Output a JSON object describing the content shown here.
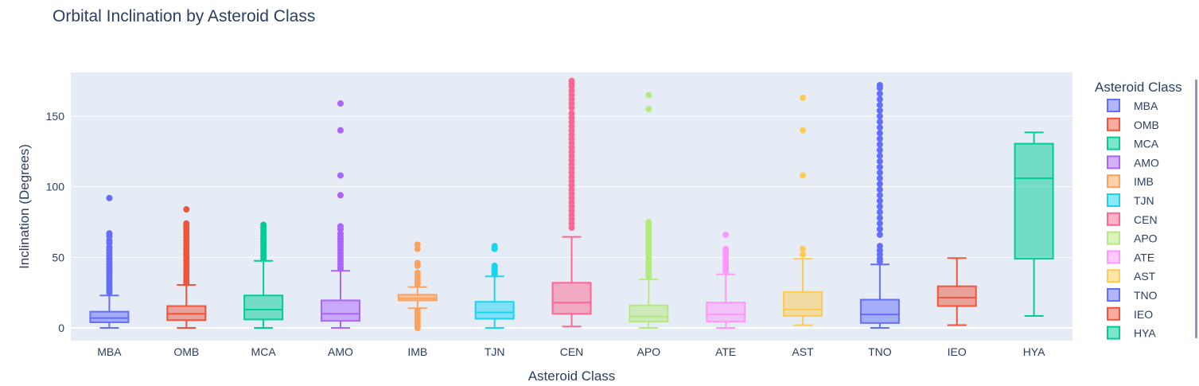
{
  "chart_data": {
    "type": "box",
    "title": "Orbital Inclination by Asteroid Class",
    "xlabel": "Asteroid Class",
    "ylabel": "Inclination (Degrees)",
    "ylim": [
      -9,
      181
    ],
    "yticks": [
      0,
      50,
      100,
      150
    ],
    "grid": true,
    "legend_title": "Asteroid Class",
    "legend_position": "right",
    "plot_background": "#e5ecf6",
    "series": [
      {
        "name": "MBA",
        "color": "#636efa",
        "q1": 4,
        "median": 7,
        "q3": 11.5,
        "lower_fence": 0,
        "upper_fence": 23,
        "outliers": [
          92,
          67,
          65,
          62,
          60,
          57,
          55,
          53,
          51,
          49,
          47,
          45,
          43,
          41,
          39,
          37,
          35,
          33,
          31,
          29,
          27,
          25
        ]
      },
      {
        "name": "OMB",
        "color": "#ef553b",
        "q1": 5.5,
        "median": 10,
        "q3": 15.5,
        "lower_fence": 0,
        "upper_fence": 30.5,
        "outliers": [
          84,
          74,
          72,
          70,
          68,
          66,
          64,
          62,
          60,
          58,
          56,
          54,
          52,
          50,
          48,
          46,
          44,
          42,
          40,
          38,
          36,
          34,
          32
        ]
      },
      {
        "name": "MCA",
        "color": "#00cc96",
        "q1": 6,
        "median": 13,
        "q3": 23,
        "lower_fence": 0,
        "upper_fence": 47.5,
        "outliers": [
          73,
          71,
          69,
          67,
          65,
          63,
          61,
          59,
          57,
          55,
          53,
          51,
          49
        ]
      },
      {
        "name": "AMO",
        "color": "#ab63fa",
        "q1": 5,
        "median": 10,
        "q3": 19.5,
        "lower_fence": 0,
        "upper_fence": 40.5,
        "outliers": [
          159,
          140,
          108,
          94,
          72,
          70,
          67,
          65,
          63,
          61,
          59,
          57,
          55,
          53,
          51,
          49,
          47,
          45,
          43,
          42
        ]
      },
      {
        "name": "IMB",
        "color": "#ffa15a",
        "q1": 19.5,
        "median": 21,
        "q3": 23.5,
        "lower_fence": 14,
        "upper_fence": 29,
        "outliers": [
          59,
          56,
          46,
          44,
          39,
          37,
          35,
          33,
          31,
          12,
          10,
          8,
          6,
          4,
          2,
          1,
          0
        ]
      },
      {
        "name": "TJN",
        "color": "#19d3f3",
        "q1": 6.5,
        "median": 11,
        "q3": 18.5,
        "lower_fence": 0,
        "upper_fence": 36.5,
        "outliers": [
          58,
          56,
          44,
          43,
          42,
          41,
          40,
          39,
          38
        ]
      },
      {
        "name": "CEN",
        "color": "#ff6692",
        "q1": 10,
        "median": 18,
        "q3": 32,
        "lower_fence": 1,
        "upper_fence": 64.5,
        "outliers": [
          175,
          173,
          171,
          168,
          165,
          162,
          159,
          156,
          152,
          149,
          146,
          143,
          140,
          137,
          134,
          131,
          128,
          125,
          122,
          119,
          116,
          113,
          110,
          107,
          104,
          101,
          98,
          95,
          92,
          89,
          86,
          83,
          80,
          77,
          74,
          71
        ]
      },
      {
        "name": "APO",
        "color": "#b6e880",
        "q1": 4.5,
        "median": 8,
        "q3": 16,
        "lower_fence": 0,
        "upper_fence": 34.5,
        "outliers": [
          165,
          155,
          75,
          73,
          71,
          69,
          67,
          65,
          63,
          61,
          59,
          57,
          55,
          53,
          51,
          49,
          47,
          45,
          43,
          41,
          39,
          37,
          36
        ]
      },
      {
        "name": "ATE",
        "color": "#ff97ff",
        "q1": 4.5,
        "median": 9.5,
        "q3": 18,
        "lower_fence": 0,
        "upper_fence": 38,
        "outliers": [
          66,
          56,
          54,
          52,
          50,
          48,
          46,
          44,
          42,
          40
        ]
      },
      {
        "name": "AST",
        "color": "#fecb52",
        "q1": 8.5,
        "median": 13,
        "q3": 25.5,
        "lower_fence": 2,
        "upper_fence": 49,
        "outliers": [
          163,
          140,
          108,
          56,
          52
        ]
      },
      {
        "name": "TNO",
        "color": "#636efa",
        "q1": 3.5,
        "median": 9.5,
        "q3": 20,
        "lower_fence": 0,
        "upper_fence": 45,
        "outliers": [
          172,
          170,
          166,
          162,
          158,
          154,
          150,
          146,
          142,
          138,
          134,
          130,
          126,
          122,
          118,
          114,
          110,
          106,
          102,
          98,
          94,
          90,
          86,
          82,
          78,
          74,
          70,
          66,
          58,
          55,
          52,
          49,
          47
        ]
      },
      {
        "name": "IEO",
        "color": "#ef553b",
        "q1": 15.5,
        "median": 21.5,
        "q3": 29.5,
        "lower_fence": 2,
        "upper_fence": 49.5,
        "outliers": []
      },
      {
        "name": "HYA",
        "color": "#00cc96",
        "q1": 49,
        "median": 106,
        "q3": 130.5,
        "lower_fence": 8.5,
        "upper_fence": 138.5,
        "outliers": []
      }
    ]
  }
}
